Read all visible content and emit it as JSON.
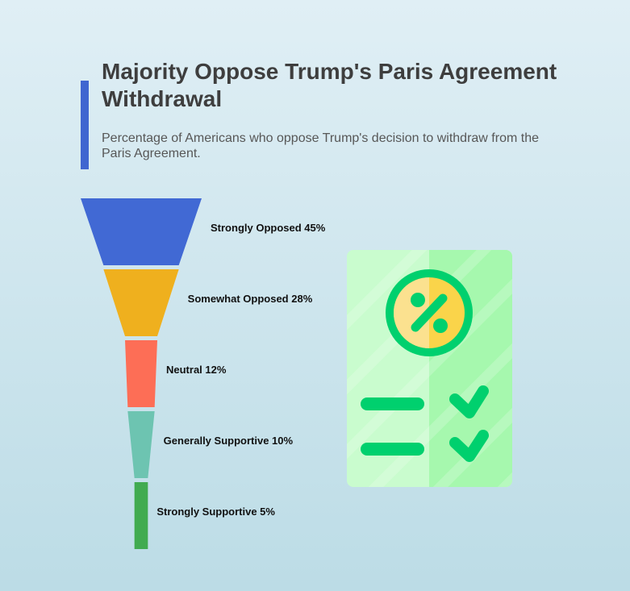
{
  "header": {
    "title": "Majority Oppose Trump's Paris Agreement Withdrawal",
    "subtitle": "Percentage of Americans who oppose Trump's decision to withdraw from the Paris Agreement."
  },
  "chart_data": {
    "type": "funnel",
    "title": "Majority Oppose Trump's Paris Agreement Withdrawal",
    "subtitle": "Percentage of Americans who oppose Trump's decision to withdraw from the Paris Agreement.",
    "unit": "%",
    "categories": [
      "Strongly Opposed",
      "Somewhat Opposed",
      "Neutral",
      "Generally Supportive",
      "Strongly Supportive"
    ],
    "values": [
      45,
      28,
      12,
      10,
      5
    ],
    "labels": [
      "Strongly Opposed 45%",
      "Somewhat Opposed 28%",
      "Neutral 12%",
      "Generally Supportive 10%",
      "Strongly Supportive 5%"
    ],
    "colors": [
      "#4169d4",
      "#efb01e",
      "#fd6e56",
      "#6dc4b1",
      "#41ab50"
    ]
  },
  "illustration": {
    "icon": "survey-document-icon",
    "colors": {
      "card_light": "#c9fcce",
      "card_dark": "#a6f8ae",
      "accent": "#00d06e",
      "badge": "#fad44a"
    }
  }
}
